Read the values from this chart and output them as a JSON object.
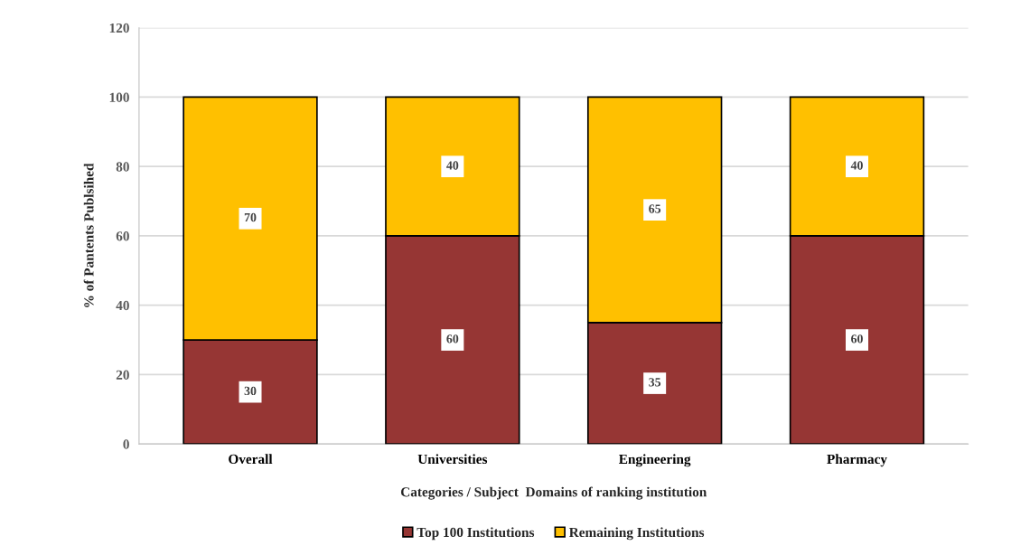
{
  "chart_data": {
    "type": "bar",
    "stacked": true,
    "xlabel": "Categories / Subject  Domains of ranking institution",
    "ylabel": "% of Pantents Publsihed",
    "categories": [
      "Overall",
      "Universities",
      "Engineering",
      "Pharmacy"
    ],
    "series": [
      {
        "name": "Top 100 Institutions",
        "color": "#963634",
        "values": [
          30,
          60,
          35,
          60
        ]
      },
      {
        "name": "Remaining Institutions",
        "color": "#ffc000",
        "values": [
          70,
          40,
          65,
          40
        ]
      }
    ],
    "ylim": [
      0,
      120
    ],
    "yticks": [
      0,
      20,
      40,
      60,
      80,
      100,
      120
    ],
    "grid": "y",
    "legend": "bottom",
    "data_labels": true
  }
}
